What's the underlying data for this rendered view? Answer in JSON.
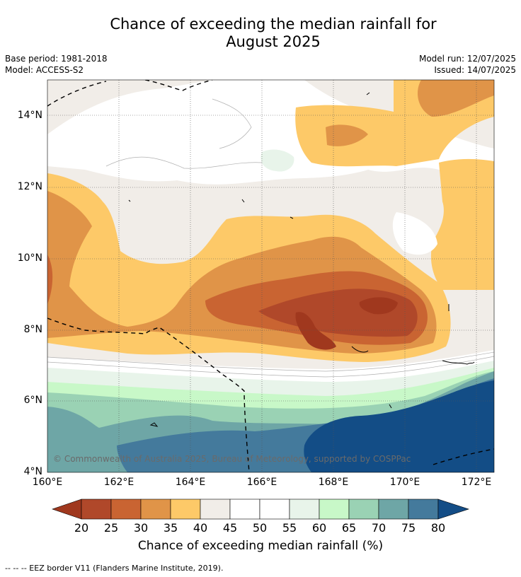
{
  "title_line1": "Chance of exceeding the median rainfall for",
  "title_line2": "August 2025",
  "base_period": "Base period: 1981-2018",
  "model": "Model: ACCESS-S2",
  "model_run": "Model run: 12/07/2025",
  "issued": "Issued: 14/07/2025",
  "copyright": "© Commonwealth of Australia 2025, Bureau of Meteorology, supported by COSPPac",
  "lat_labels": [
    "14°N",
    "12°N",
    "10°N",
    "8°N",
    "6°N",
    "4°N"
  ],
  "lon_labels": [
    "160°E",
    "162°E",
    "164°E",
    "166°E",
    "168°E",
    "170°E",
    "172°E"
  ],
  "colorbar": {
    "label": "Chance of exceeding median rainfall (%)",
    "ticks": [
      "20",
      "25",
      "30",
      "35",
      "40",
      "45",
      "50",
      "55",
      "60",
      "65",
      "70",
      "75",
      "80"
    ],
    "colors": [
      "#a0381e",
      "#b0482a",
      "#c96432",
      "#e09448",
      "#fdc968",
      "#f1ede8",
      "#ffffff",
      "#ffffff",
      "#e8f4ea",
      "#c8f8c8",
      "#9ad2b4",
      "#6ea6a6",
      "#447a9c",
      "#134d86"
    ]
  },
  "footnote": "-- -- -- EEZ border V11 (Flanders Marine Institute, 2019)."
}
